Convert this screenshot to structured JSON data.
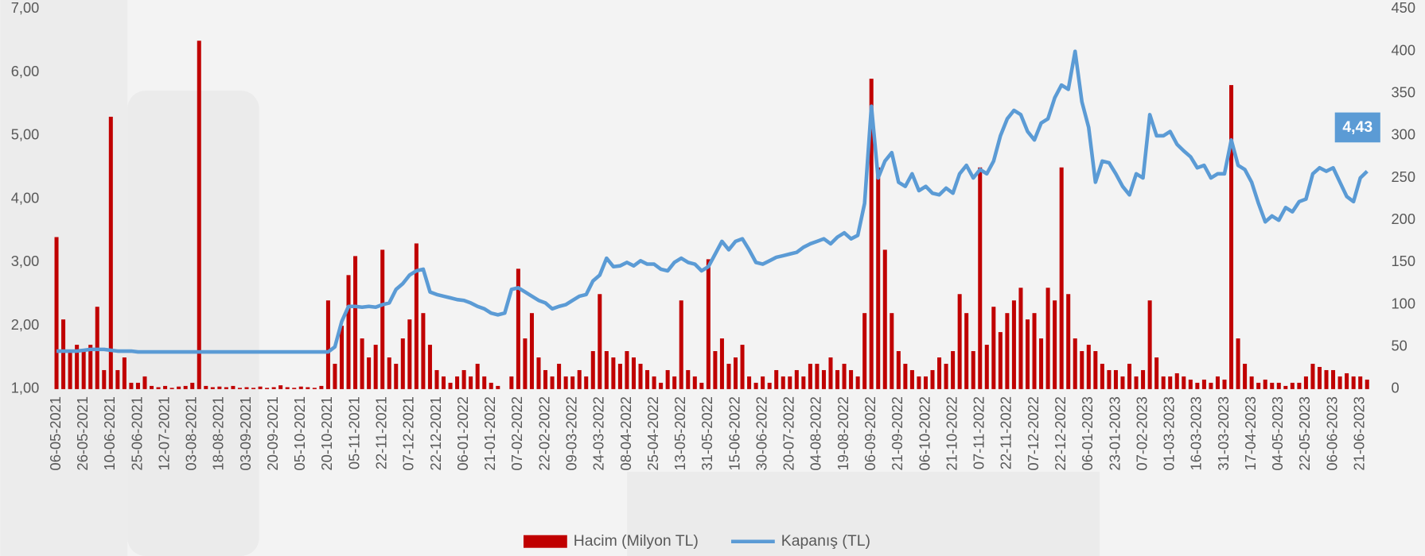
{
  "chart_data": {
    "type": "bar_line",
    "categories": [
      "06-05-2021",
      null,
      null,
      null,
      "26-05-2021",
      null,
      null,
      null,
      "10-06-2021",
      null,
      null,
      null,
      "25-06-2021",
      null,
      null,
      null,
      "12-07-2021",
      null,
      null,
      null,
      "03-08-2021",
      null,
      null,
      null,
      "18-08-2021",
      null,
      null,
      null,
      "03-09-2021",
      null,
      null,
      null,
      "20-09-2021",
      null,
      null,
      null,
      "05-10-2021",
      null,
      null,
      null,
      "20-10-2021",
      null,
      null,
      null,
      "05-11-2021",
      null,
      null,
      null,
      "22-11-2021",
      null,
      null,
      null,
      "07-12-2021",
      null,
      null,
      null,
      "22-12-2021",
      null,
      null,
      null,
      "06-01-2022",
      null,
      null,
      null,
      "21-01-2022",
      null,
      null,
      null,
      "07-02-2022",
      null,
      null,
      null,
      "22-02-2022",
      null,
      null,
      null,
      "09-03-2022",
      null,
      null,
      null,
      "24-03-2022",
      null,
      null,
      null,
      "08-04-2022",
      null,
      null,
      null,
      "25-04-2022",
      null,
      null,
      null,
      "13-05-2022",
      null,
      null,
      null,
      "31-05-2022",
      null,
      null,
      null,
      "15-06-2022",
      null,
      null,
      null,
      "30-06-2022",
      null,
      null,
      null,
      "20-07-2022",
      null,
      null,
      null,
      "04-08-2022",
      null,
      null,
      null,
      "19-08-2022",
      null,
      null,
      null,
      "06-09-2022",
      null,
      null,
      null,
      "21-09-2022",
      null,
      null,
      null,
      "06-10-2022",
      null,
      null,
      null,
      "21-10-2022",
      null,
      null,
      null,
      "07-11-2022",
      null,
      null,
      null,
      "22-11-2022",
      null,
      null,
      null,
      "07-12-2022",
      null,
      null,
      null,
      "22-12-2022",
      null,
      null,
      null,
      "06-01-2023",
      null,
      null,
      null,
      "23-01-2023",
      null,
      null,
      null,
      "07-02-2023",
      null,
      null,
      null,
      "01-03-2023",
      null,
      null,
      null,
      "16-03-2023",
      null,
      null,
      null,
      "31-03-2023",
      null,
      null,
      null,
      "17-04-2023",
      null,
      null,
      null,
      "04-05-2023",
      null,
      null,
      null,
      "22-05-2023",
      null,
      null,
      null,
      "06-06-2023",
      null,
      null,
      null,
      "21-06-2023",
      null
    ],
    "series": [
      {
        "name": "Hacim (Milyon TL)",
        "color": "#c00000",
        "axis": "y",
        "values": [
          3.4,
          2.1,
          1.6,
          1.7,
          1.6,
          1.7,
          2.3,
          1.3,
          5.3,
          1.3,
          1.5,
          1.1,
          1.1,
          1.2,
          1.05,
          1.03,
          1.05,
          1.02,
          1.04,
          1.05,
          1.1,
          6.5,
          1.05,
          1.03,
          1.04,
          1.03,
          1.05,
          1.02,
          1.03,
          1.02,
          1.04,
          1.02,
          1.03,
          1.06,
          1.03,
          1.02,
          1.04,
          1.03,
          1.02,
          1.05,
          2.4,
          1.4,
          2,
          2.8,
          3.1,
          1.8,
          1.5,
          1.7,
          3.2,
          1.5,
          1.4,
          1.8,
          2.1,
          3.3,
          2.2,
          1.7,
          1.3,
          1.2,
          1.1,
          1.2,
          1.3,
          1.2,
          1.4,
          1.2,
          1.1,
          1.05,
          1,
          1.2,
          2.9,
          1.8,
          2.2,
          1.5,
          1.3,
          1.2,
          1.4,
          1.2,
          1.2,
          1.3,
          1.2,
          1.6,
          2.5,
          1.6,
          1.5,
          1.4,
          1.6,
          1.5,
          1.4,
          1.3,
          1.2,
          1.1,
          1.3,
          1.2,
          2.4,
          1.3,
          1.2,
          1.1,
          3.05,
          1.6,
          1.8,
          1.4,
          1.5,
          1.7,
          1.2,
          1.1,
          1.2,
          1.1,
          1.3,
          1.2,
          1.2,
          1.3,
          1.2,
          1.4,
          1.4,
          1.3,
          1.5,
          1.3,
          1.4,
          1.3,
          1.2,
          2.2,
          5.9,
          4.5,
          3.2,
          2.2,
          1.6,
          1.4,
          1.3,
          1.2,
          1.2,
          1.3,
          1.5,
          1.4,
          1.6,
          2.5,
          2.2,
          1.6,
          4.5,
          1.7,
          2.3,
          1.9,
          2.2,
          2.4,
          2.6,
          2.1,
          2.2,
          1.8,
          2.6,
          2.4,
          4.5,
          2.5,
          1.8,
          1.6,
          1.7,
          1.6,
          1.4,
          1.3,
          1.3,
          1.2,
          1.4,
          1.2,
          1.3,
          2.4,
          1.5,
          1.2,
          1.2,
          1.25,
          1.2,
          1.15,
          1.1,
          1.15,
          1.1,
          1.2,
          1.15,
          5.8,
          1.8,
          1.4,
          1.2,
          1.1,
          1.15,
          1.1,
          1.1,
          1.05,
          1.1,
          1.1,
          1.2,
          1.4,
          1.35,
          1.3,
          1.3,
          1.2,
          1.25,
          1.2,
          1.2,
          1.15
        ]
      },
      {
        "name": "Kapanış (TL)",
        "color": "#5b9bd5",
        "axis": "y2",
        "values": [
          45,
          45,
          45,
          45,
          46,
          47,
          47,
          47,
          46,
          45,
          45,
          45,
          44,
          44,
          44,
          44,
          44,
          44,
          44,
          44,
          44,
          44,
          44,
          44,
          44,
          44,
          44,
          44,
          44,
          44,
          44,
          44,
          44,
          44,
          44,
          44,
          44,
          44,
          44,
          44,
          44,
          50,
          80,
          98,
          98,
          97,
          98,
          97,
          100,
          102,
          118,
          125,
          135,
          140,
          142,
          115,
          112,
          110,
          108,
          106,
          105,
          102,
          98,
          95,
          90,
          88,
          90,
          118,
          120,
          115,
          110,
          105,
          102,
          95,
          98,
          100,
          105,
          110,
          112,
          128,
          135,
          155,
          145,
          146,
          150,
          146,
          152,
          148,
          148,
          142,
          140,
          150,
          155,
          150,
          148,
          140,
          145,
          160,
          175,
          165,
          175,
          178,
          165,
          150,
          148,
          152,
          156,
          158,
          160,
          162,
          168,
          172,
          175,
          178,
          172,
          180,
          185,
          178,
          182,
          220,
          335,
          250,
          270,
          280,
          245,
          240,
          255,
          235,
          240,
          232,
          230,
          238,
          232,
          255,
          265,
          250,
          260,
          255,
          270,
          300,
          320,
          330,
          325,
          305,
          295,
          315,
          320,
          345,
          360,
          355,
          400,
          340,
          310,
          245,
          270,
          268,
          255,
          240,
          230,
          255,
          250,
          325,
          300,
          300,
          305,
          290,
          282,
          275,
          262,
          265,
          250,
          255,
          255,
          295,
          265,
          260,
          245,
          220,
          198,
          205,
          200,
          215,
          210,
          222,
          225,
          255,
          262,
          258,
          262,
          245,
          228,
          222,
          250,
          258
        ]
      }
    ],
    "ylim": [
      1,
      7
    ],
    "yticks": [
      {
        "value": 1,
        "label": "1,00"
      },
      {
        "value": 2,
        "label": "2,00"
      },
      {
        "value": 3,
        "label": "3,00"
      },
      {
        "value": 4,
        "label": "4,00"
      },
      {
        "value": 5,
        "label": "5,00"
      },
      {
        "value": 6,
        "label": "6,00"
      },
      {
        "value": 7,
        "label": "7,00"
      }
    ],
    "y2lim": [
      0,
      450
    ],
    "y2ticks": [
      0,
      50,
      100,
      150,
      200,
      250,
      300,
      350,
      400,
      450
    ],
    "annotation": "4,43",
    "legend": "bottom"
  }
}
